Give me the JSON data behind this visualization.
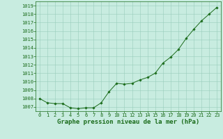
{
  "x": [
    0,
    1,
    2,
    3,
    4,
    5,
    6,
    7,
    8,
    9,
    10,
    11,
    12,
    13,
    14,
    15,
    16,
    17,
    18,
    19,
    20,
    21,
    22,
    23
  ],
  "y": [
    1008.0,
    1007.5,
    1007.4,
    1007.4,
    1006.9,
    1006.8,
    1006.9,
    1006.9,
    1007.5,
    1008.8,
    1009.8,
    1009.7,
    1009.8,
    1010.2,
    1010.5,
    1011.0,
    1012.2,
    1012.9,
    1013.8,
    1015.1,
    1016.2,
    1017.2,
    1018.0,
    1018.8
  ],
  "ylim": [
    1006.5,
    1019.5
  ],
  "xlim": [
    -0.5,
    23.5
  ],
  "yticks": [
    1007,
    1008,
    1009,
    1010,
    1011,
    1012,
    1013,
    1014,
    1015,
    1016,
    1017,
    1018,
    1019
  ],
  "xticks": [
    0,
    1,
    2,
    3,
    4,
    5,
    6,
    7,
    8,
    9,
    10,
    11,
    12,
    13,
    14,
    15,
    16,
    17,
    18,
    19,
    20,
    21,
    22,
    23
  ],
  "line_color": "#1a6b1a",
  "marker_color": "#1a6b1a",
  "bg_color": "#c8ece0",
  "grid_color": "#99ccbb",
  "xlabel": "Graphe pression niveau de la mer (hPa)",
  "title_color": "#1a6b1a",
  "tick_fontsize": 5.0,
  "label_fontsize": 6.5
}
